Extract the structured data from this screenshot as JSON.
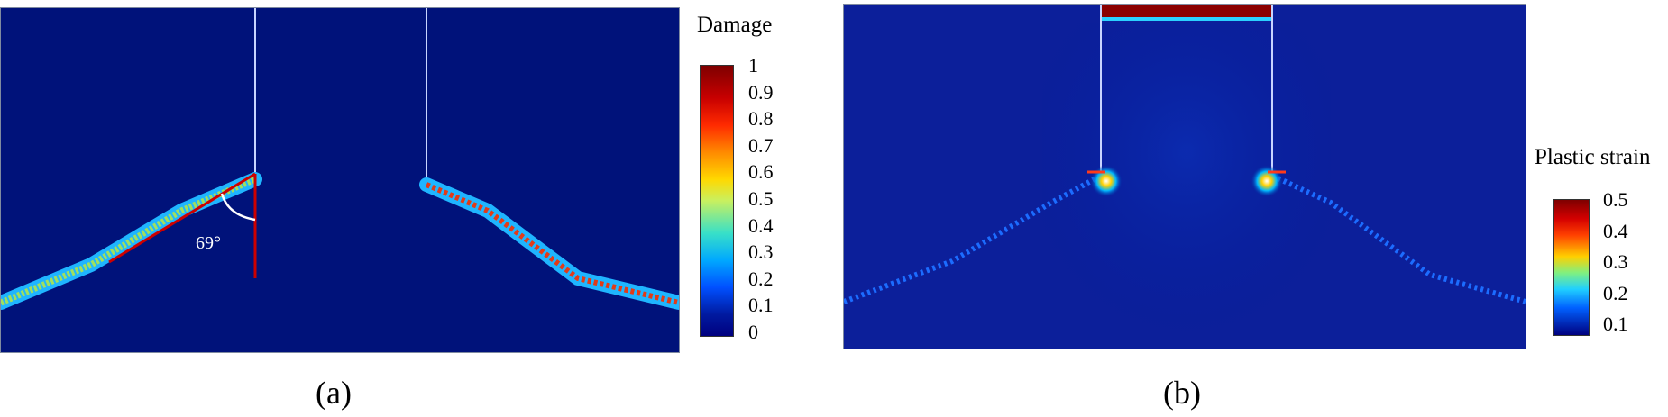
{
  "panel_a": {
    "caption": "(a)",
    "angle_label": "69°",
    "colorbar": {
      "title": "Damage",
      "ticks": [
        "1",
        "0.9",
        "0.8",
        "0.7",
        "0.6",
        "0.5",
        "0.4",
        "0.3",
        "0.2",
        "0.1",
        "0"
      ]
    }
  },
  "panel_b": {
    "caption": "(b)",
    "colorbar": {
      "title": "Plastic strain",
      "ticks": [
        "0.5",
        "0.4",
        "0.3",
        "0.2",
        "0.1"
      ]
    }
  },
  "colors": {
    "background_field": "#00127a",
    "max": "#7f0000",
    "mid": "#ffff00",
    "min": "#00007f",
    "marker_line": "#cc0000"
  }
}
